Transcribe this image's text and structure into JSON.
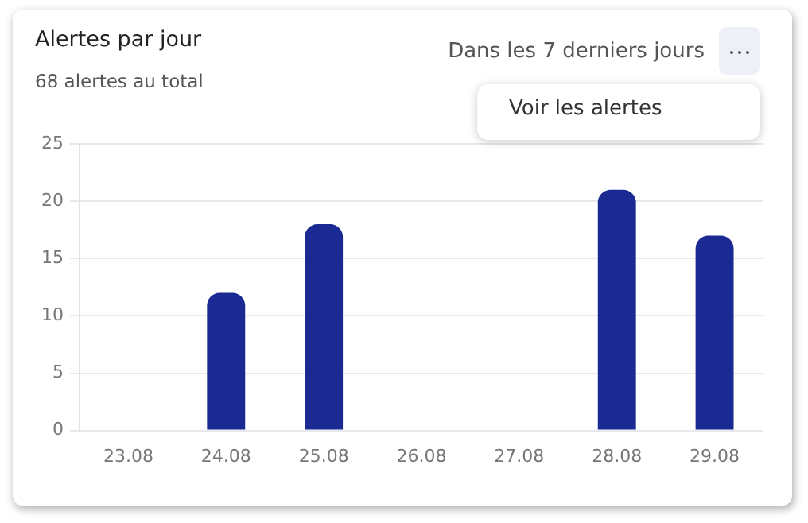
{
  "chart_data": {
    "type": "bar",
    "title": "Alertes par jour",
    "subtitle": "68 alertes au total",
    "annotations": [
      "Dans les 7 derniers jours",
      "Voir les alertes"
    ],
    "categories": [
      "23.08",
      "24.08",
      "25.08",
      "26.08",
      "27.08",
      "28.08",
      "29.08"
    ],
    "values": [
      0,
      12,
      18,
      0,
      0,
      21,
      17
    ],
    "color": "#1a2a92",
    "ylim": [
      0,
      25
    ],
    "yticks": [
      0,
      5,
      10,
      15,
      20,
      25
    ],
    "grid": "y",
    "legend": false
  }
}
